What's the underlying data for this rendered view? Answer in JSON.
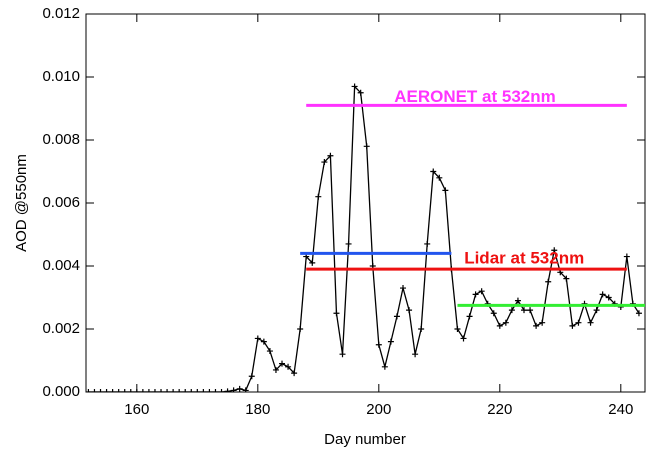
{
  "chart_data": {
    "type": "line",
    "xlabel": "Day number",
    "ylabel": "AOD @550nm",
    "x": [
      152,
      153,
      154,
      155,
      156,
      157,
      158,
      159,
      160,
      161,
      162,
      163,
      164,
      165,
      166,
      167,
      168,
      169,
      170,
      171,
      172,
      173,
      174,
      175,
      176,
      177,
      178,
      179,
      180,
      181,
      182,
      183,
      184,
      185,
      186,
      187,
      188,
      189,
      190,
      191,
      192,
      193,
      194,
      195,
      196,
      197,
      198,
      199,
      200,
      201,
      202,
      203,
      204,
      205,
      206,
      207,
      208,
      209,
      210,
      211,
      212,
      213,
      214,
      215,
      216,
      217,
      218,
      219,
      220,
      221,
      222,
      223,
      224,
      225,
      226,
      227,
      228,
      229,
      230,
      231,
      232,
      233,
      234,
      235,
      236,
      237,
      238,
      239,
      240,
      241,
      242,
      243
    ],
    "series": [
      {
        "color": "#000000",
        "marker": "+",
        "values": [
          0,
          0,
          0,
          0,
          0,
          0,
          0,
          0,
          0,
          0,
          0,
          0,
          0,
          0,
          0,
          0,
          0,
          0,
          0,
          0,
          0,
          0,
          0,
          2e-05,
          5e-05,
          0.0001,
          5e-05,
          0.0005,
          0.0017,
          0.0016,
          0.0013,
          0.0007,
          0.0009,
          0.0008,
          0.0006,
          0.002,
          0.0043,
          0.0041,
          0.0062,
          0.0073,
          0.0075,
          0.0025,
          0.0012,
          0.0047,
          0.0097,
          0.0095,
          0.0078,
          0.004,
          0.0015,
          0.0008,
          0.0016,
          0.0024,
          0.0033,
          0.0026,
          0.0012,
          0.002,
          0.0047,
          0.007,
          0.0068,
          0.0064,
          0.0039,
          0.002,
          0.0017,
          0.0024,
          0.0031,
          0.0032,
          0.0028,
          0.0025,
          0.0021,
          0.0022,
          0.0026,
          0.0029,
          0.0026,
          0.0026,
          0.0021,
          0.0022,
          0.0035,
          0.0045,
          0.0038,
          0.0036,
          0.0021,
          0.0022,
          0.0028,
          0.0022,
          0.0026,
          0.0031,
          0.003,
          0.0028,
          0.0027,
          0.0043,
          0.0028,
          0.0025
        ]
      }
    ],
    "reference_lines": [
      {
        "label": "AERONET at 532nm",
        "color": "#ff33ff",
        "value": 0.0091,
        "x": [
          188,
          241
        ]
      },
      {
        "color": "#2255ee",
        "value": 0.0044,
        "x": [
          187,
          212
        ]
      },
      {
        "label": "Lidar at 532nm",
        "color": "#ee1111",
        "value": 0.0039,
        "x": [
          188,
          241
        ]
      },
      {
        "color": "#33ee33",
        "value": 0.00275,
        "x": [
          213,
          244
        ]
      }
    ],
    "xlim": [
      151.6,
      244
    ],
    "ylim": [
      0,
      0.012
    ],
    "xticks": [
      160,
      180,
      200,
      220,
      240
    ],
    "yticks": [
      {
        "value": 0,
        "label": "0.000"
      },
      {
        "value": 0.002,
        "label": "0.002"
      },
      {
        "value": 0.004,
        "label": "0.004"
      },
      {
        "value": 0.006,
        "label": "0.006"
      },
      {
        "value": 0.008,
        "label": "0.008"
      },
      {
        "value": 0.01,
        "label": "0.010"
      },
      {
        "value": 0.012,
        "label": "0.012"
      }
    ],
    "grid": false
  }
}
